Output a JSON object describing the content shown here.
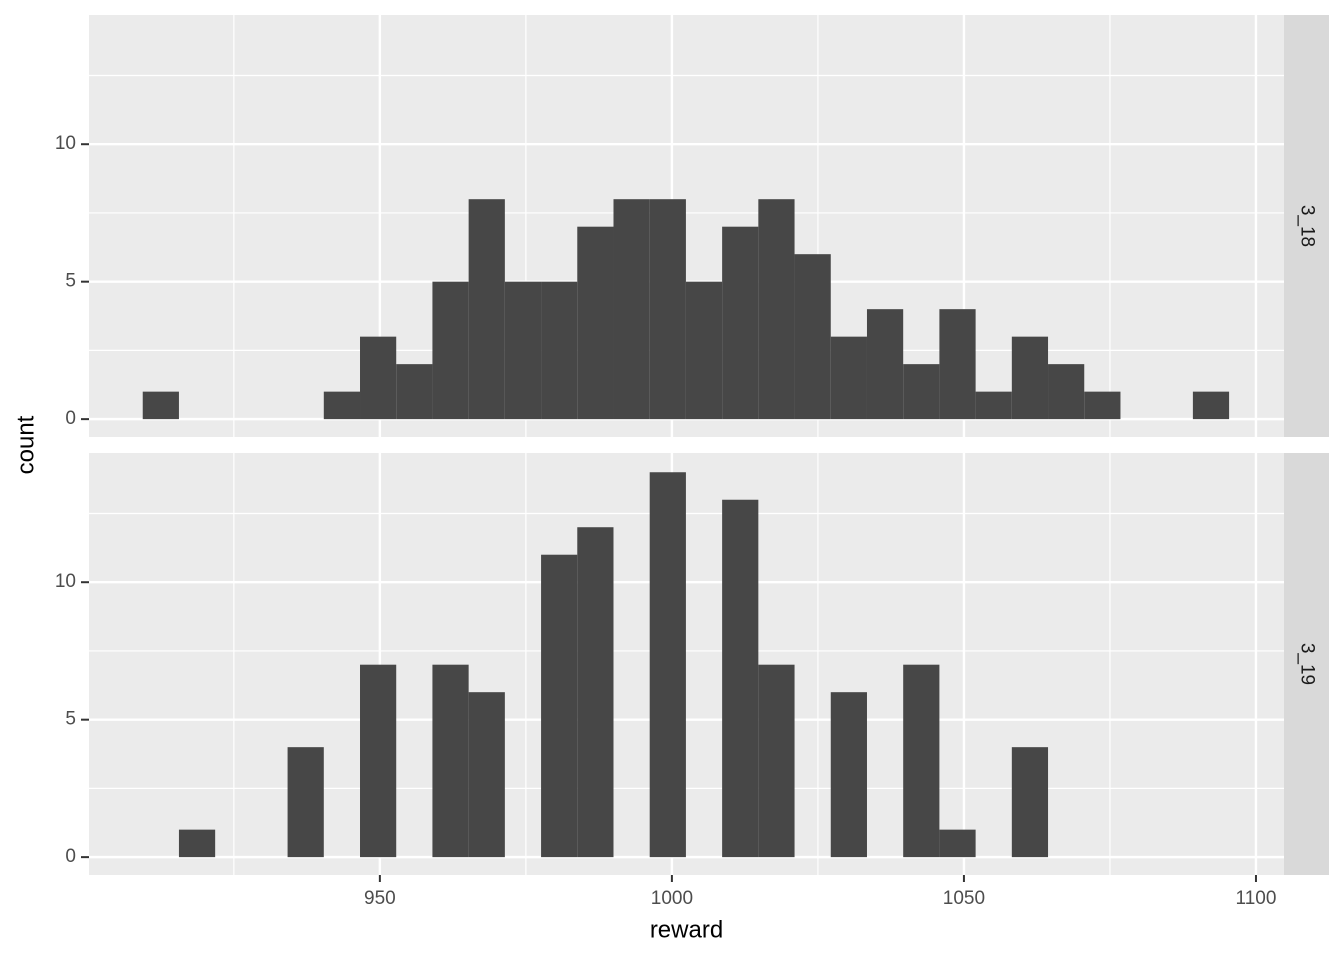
{
  "chart_data": [
    {
      "type": "histogram",
      "facet": "3_18",
      "y_label": "count",
      "bins": [
        909.4,
        915.6,
        921.8,
        928.0,
        934.2,
        940.4,
        946.6,
        952.8,
        959.0,
        965.2,
        971.4,
        977.6,
        983.8,
        990.0,
        996.2,
        1002.4,
        1008.6,
        1014.8,
        1021.0,
        1027.2,
        1033.4,
        1039.6,
        1045.8,
        1052.0,
        1058.2,
        1064.4,
        1070.6,
        1076.8,
        1083.0,
        1089.2,
        1095.4
      ],
      "values": [
        1,
        0,
        0,
        0,
        0,
        1,
        3,
        2,
        5,
        8,
        5,
        5,
        7,
        8,
        8,
        5,
        7,
        8,
        6,
        3,
        4,
        2,
        4,
        1,
        3,
        2,
        1,
        0,
        0,
        1
      ],
      "color": "#474747",
      "xlim": [
        900.2,
        1104.8
      ],
      "xticks": [
        950,
        1000,
        1050,
        1100
      ],
      "ylim": [
        -0.65,
        14.7
      ],
      "yticks": [
        0,
        5,
        10
      ],
      "grid": true
    },
    {
      "type": "histogram",
      "facet": "3_19",
      "x_label": "reward",
      "bins": [
        909.4,
        915.6,
        921.8,
        928.0,
        934.2,
        940.4,
        946.6,
        952.8,
        959.0,
        965.2,
        971.4,
        977.6,
        983.8,
        990.0,
        996.2,
        1002.4,
        1008.6,
        1014.8,
        1021.0,
        1027.2,
        1033.4,
        1039.6,
        1045.8,
        1052.0,
        1058.2,
        1064.4,
        1070.6,
        1076.8,
        1083.0,
        1089.2,
        1095.4
      ],
      "values": [
        0,
        1,
        0,
        0,
        4,
        0,
        7,
        0,
        7,
        6,
        0,
        11,
        12,
        0,
        14,
        0,
        13,
        7,
        0,
        6,
        0,
        7,
        1,
        0,
        4,
        0,
        0,
        0,
        0,
        0
      ],
      "color": "#474747",
      "xlim": [
        900.2,
        1104.8
      ],
      "xticks": [
        950,
        1000,
        1050,
        1100
      ],
      "ylim": [
        -0.65,
        14.7
      ],
      "yticks": [
        0,
        5,
        10
      ],
      "grid": true
    }
  ]
}
